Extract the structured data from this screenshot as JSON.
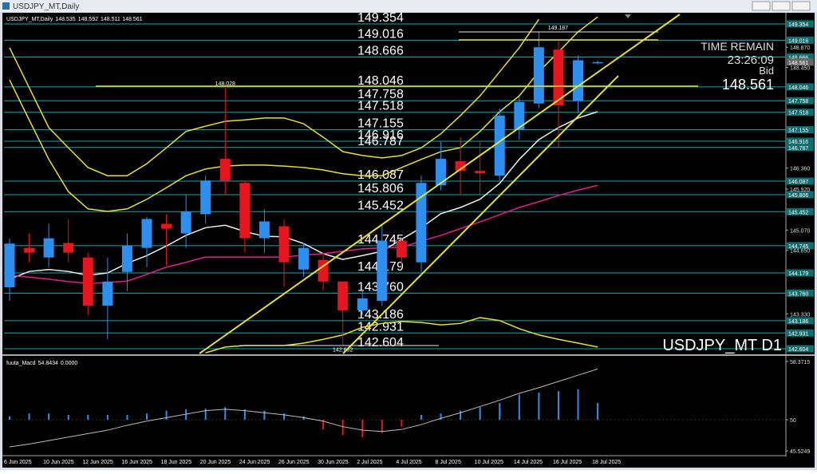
{
  "window_title": "USDJPY_MT,Daily",
  "chart_data": [
    {
      "type": "candlestick",
      "title": "USDJPY_MT,Daily",
      "categories": [
        "6 Jun 2025",
        null,
        "10 Jun 2025",
        null,
        "12 Jun 2025",
        null,
        "16 Jun 2025",
        null,
        "18 Jun 2025",
        null,
        "20 Jun 2025",
        null,
        "24 Jun 2025",
        null,
        "26 Jun 2025",
        null,
        "30 Jun 2025",
        null,
        "2 Jul 2025",
        null,
        "4 Jul 2025",
        null,
        "8 Jul 2025",
        null,
        "10 Jul 2025",
        null,
        "14 Jul 2025",
        null,
        "16 Jul 2025",
        null,
        "18 Jul 2025"
      ],
      "open": [
        143.88,
        144.7,
        144.5,
        144.8,
        144.5,
        143.5,
        144.2,
        144.7,
        145.2,
        145.0,
        145.4,
        146.55,
        146.05,
        144.9,
        145.15,
        144.25,
        144.45,
        144.0,
        143.4,
        143.6,
        144.85,
        144.4,
        146.0,
        146.5,
        146.3,
        146.2,
        147.15,
        147.7,
        148.82,
        147.75,
        148.535
      ],
      "high": [
        144.9,
        145.0,
        145.2,
        145.3,
        144.6,
        144.5,
        145.0,
        145.35,
        145.4,
        145.8,
        146.2,
        148.028,
        146.1,
        145.5,
        145.3,
        144.8,
        144.6,
        144.0,
        143.8,
        145.2,
        144.9,
        146.2,
        146.9,
        147.0,
        146.9,
        147.6,
        147.85,
        149.187,
        149.0,
        148.7,
        148.592
      ],
      "low": [
        143.6,
        144.4,
        144.3,
        144.4,
        143.3,
        142.8,
        143.8,
        144.3,
        144.33,
        144.7,
        145.2,
        145.8,
        144.6,
        144.6,
        143.9,
        144.1,
        143.8,
        142.682,
        143.3,
        143.5,
        144.3,
        144.2,
        145.9,
        145.8,
        145.8,
        146.1,
        146.95,
        147.6,
        146.8,
        147.5,
        148.511
      ],
      "close": [
        144.79,
        144.6,
        144.9,
        144.6,
        143.5,
        144.0,
        144.75,
        145.3,
        145.1,
        145.45,
        146.1,
        146.1,
        144.9,
        145.25,
        144.4,
        144.7,
        144.0,
        143.4,
        143.65,
        144.85,
        144.5,
        146.05,
        146.55,
        146.3,
        146.25,
        147.45,
        147.73,
        148.87,
        147.66,
        148.6,
        148.561
      ],
      "up_color": "#2d8ff0",
      "down_color": "#e8141e",
      "overlays": [
        {
          "color": "#f0f0f0",
          "values": [
            144.05,
            144.21,
            144.25,
            144.21,
            144.13,
            144.18,
            144.38,
            144.54,
            144.74,
            144.96,
            145.12,
            145.17,
            145.04,
            144.94,
            144.93,
            144.79,
            144.58,
            144.46,
            144.54,
            144.63,
            144.88,
            145.12,
            145.41,
            145.54,
            145.71,
            146.04,
            146.54,
            146.95,
            147.2,
            147.4,
            147.53
          ]
        },
        {
          "color": "#e0208a",
          "values": [
            144.13,
            144.09,
            144.05,
            144.0,
            143.96,
            143.98,
            144.01,
            144.15,
            144.3,
            144.4,
            144.51,
            144.51,
            144.51,
            144.51,
            144.51,
            144.55,
            144.58,
            144.63,
            144.68,
            144.7,
            144.71,
            144.84,
            144.96,
            145.1,
            145.24,
            145.39,
            145.54,
            145.66,
            145.79,
            145.9,
            146.0
          ]
        },
        {
          "color": "#e8e030",
          "values": [
            148.86,
            148.03,
            147.2,
            146.78,
            146.37,
            146.2,
            146.2,
            146.45,
            146.78,
            147.12,
            147.23,
            147.33,
            147.36,
            147.4,
            147.4,
            147.28,
            147.0,
            146.7,
            146.62,
            146.57,
            146.62,
            146.78,
            147.07,
            147.45,
            147.86,
            148.36,
            148.86,
            149.45,
            null,
            null,
            null
          ]
        },
        {
          "color": "#e8e030",
          "values": [
            148.19,
            147.36,
            146.54,
            145.87,
            145.51,
            145.46,
            145.51,
            145.71,
            145.95,
            146.2,
            146.34,
            146.4,
            146.42,
            146.42,
            146.4,
            146.37,
            146.32,
            146.24,
            146.2,
            146.2,
            146.37,
            146.54,
            146.7,
            146.78,
            147.12,
            147.53,
            147.86,
            148.36,
            148.77,
            149.19,
            149.5
          ]
        },
        {
          "color": "#e8e030",
          "values": [
            null,
            null,
            null,
            null,
            null,
            null,
            null,
            null,
            null,
            null,
            142.52,
            142.64,
            142.67,
            142.67,
            142.67,
            142.72,
            142.8,
            142.89,
            143.05,
            143.13,
            143.17,
            143.15,
            143.1,
            143.13,
            143.25,
            143.19,
            143.02,
            142.89,
            142.8,
            142.72,
            142.64
          ]
        }
      ],
      "levels": [
        149.354,
        149.016,
        148.666,
        148.046,
        147.758,
        147.518,
        147.155,
        146.916,
        146.787,
        146.087,
        145.806,
        145.452,
        144.745,
        144.179,
        {
          "value": 143.76,
          "label": "143.760"
        },
        143.186,
        142.931,
        142.604
      ],
      "level_color": "#17a9a9",
      "ylim": [
        142.505,
        149.553
      ],
      "yticks": [
        {
          "value": 148.87,
          "label": "148.870"
        },
        {
          "value": 148.45,
          "label": "148.450"
        },
        {
          "value": 146.36,
          "label": "146.360"
        },
        {
          "value": 145.92,
          "label": "145.920"
        },
        {
          "value": 145.07,
          "label": "145.070"
        },
        {
          "value": 144.65,
          "label": "144.650"
        },
        {
          "value": 143.33,
          "label": "143.330"
        }
      ],
      "time_remain_label": "TIME REMAIN",
      "time_remain": "23:26:09",
      "bid_label": "Bid",
      "symbol_label": "USDJPY_MT D1"
    },
    {
      "type": "macd",
      "title": "fuuta_Macd",
      "readout": [
        54.8434,
        {
          "value": 0,
          "label": "0.0000"
        }
      ],
      "histogram": [
        50.5,
        50.9,
        50.9,
        50.7,
        50.7,
        50.7,
        50.7,
        50.9,
        51.3,
        51.5,
        51.6,
        51.8,
        51.5,
        51.3,
        50.9,
        50.5,
        48.6,
        47.8,
        47.5,
        48.1,
        49.0,
        50.7,
        50.9,
        51.3,
        51.8,
        52.4,
        53.6,
        53.9,
        54.1,
        54.4,
        52.4
      ],
      "histogram_base": 50,
      "up_color": "#2d8ff0",
      "down_color": "#e8141e",
      "signal": {
        "color": "#bbbbbb",
        "values": [
          46.1,
          46.5,
          47.0,
          47.5,
          48.0,
          48.5,
          49.2,
          49.8,
          50.3,
          50.8,
          51.3,
          51.5,
          51.3,
          51.0,
          50.7,
          50.3,
          49.8,
          49.0,
          48.5,
          48.3,
          48.6,
          49.3,
          50.2,
          51.0,
          51.9,
          52.8,
          53.8,
          54.6,
          55.5,
          56.4,
          57.3
        ]
      },
      "ylim": [
        44.95,
        59.06
      ],
      "yticks": [
        45.5249,
        50,
        58.3715
      ]
    }
  ]
}
